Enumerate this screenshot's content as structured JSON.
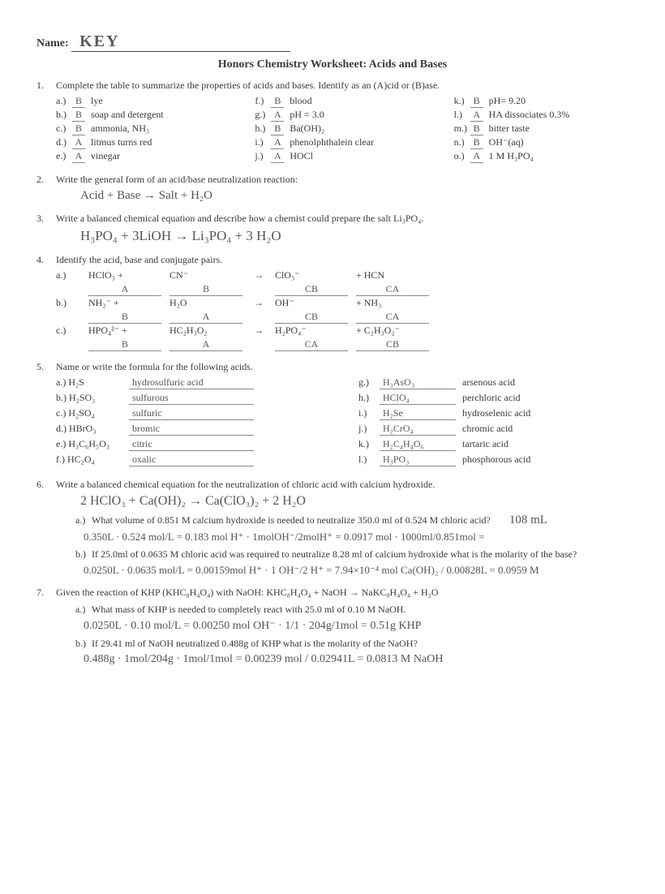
{
  "header": {
    "name_label": "Name:",
    "name_value": "KEY",
    "title": "Honors Chemistry Worksheet: Acids and Bases"
  },
  "q1": {
    "prompt": "Complete the table to summarize the properties of acids and bases. Identify as an (A)cid or (B)ase.",
    "col1": [
      {
        "l": "a.)",
        "a": "B",
        "t": "lye"
      },
      {
        "l": "b.)",
        "a": "B",
        "t": "soap and detergent"
      },
      {
        "l": "c.)",
        "a": "B",
        "t": "ammonia, NH₃"
      },
      {
        "l": "d.)",
        "a": "A",
        "t": "litmus turns red"
      },
      {
        "l": "e.)",
        "a": "A",
        "t": "vinegar"
      }
    ],
    "col2": [
      {
        "l": "f.)",
        "a": "B",
        "t": "blood"
      },
      {
        "l": "g.)",
        "a": "A",
        "t": "pH = 3.0"
      },
      {
        "l": "h.)",
        "a": "B",
        "t": "Ba(OH)₂"
      },
      {
        "l": "i.)",
        "a": "A",
        "t": "phenolphthalein clear"
      },
      {
        "l": "j.)",
        "a": "A",
        "t": "HOCl"
      }
    ],
    "col3": [
      {
        "l": "k.)",
        "a": "B",
        "t": "pH= 9.20"
      },
      {
        "l": "l.)",
        "a": "A",
        "t": "HA dissociates 0.3%"
      },
      {
        "l": "m.)",
        "a": "B",
        "t": "bitter taste"
      },
      {
        "l": "n.)",
        "a": "B",
        "t": "OH⁻(aq)"
      },
      {
        "l": "o.)",
        "a": "A",
        "t": "1 M H₃PO₄"
      }
    ]
  },
  "q2": {
    "prompt": "Write the general form of an acid/base neutralization reaction:",
    "hand": "Acid + Base  →  Salt + H₂O"
  },
  "q3": {
    "prompt": "Write a balanced chemical equation and describe how a chemist could prepare the salt Li₃PO₄.",
    "hand": "H₃PO₄ + 3LiOH  →  Li₃PO₄ + 3 H₂O"
  },
  "q4": {
    "prompt": "Identify the acid, base and conjugate pairs.",
    "rows": [
      {
        "l": "a.)",
        "r1": "HClO₃",
        "a1": "A",
        "r2": "CN⁻",
        "a2": "B",
        "r3": "ClO₃⁻",
        "a3": "CB",
        "r4": "+ HCN",
        "a4": "CA"
      },
      {
        "l": "b.)",
        "r1": "NH₂⁻",
        "a1": "B",
        "r2": "H₂O",
        "a2": "A",
        "r3": "OH⁻",
        "a3": "CB",
        "r4": "+ NH₃",
        "a4": "CA"
      },
      {
        "l": "c.)",
        "r1": "HPO₄²⁻",
        "a1": "B",
        "r2": "HC₂H₃O₂",
        "a2": "A",
        "r3": "H₂PO₄⁻",
        "a3": "CA",
        "r4": "+ C₂H₃O₂⁻",
        "a4": "CB"
      }
    ]
  },
  "q5": {
    "prompt": "Name or write the formula for the following acids.",
    "left": [
      {
        "l": "a.)",
        "f": "H₂S",
        "a": "hydrosulfuric acid"
      },
      {
        "l": "b.)",
        "f": "H₂SO₃",
        "a": "sulfurous"
      },
      {
        "l": "c.)",
        "f": "H₂SO₄",
        "a": "sulfuric"
      },
      {
        "l": "d.)",
        "f": "HBrO₃",
        "a": "bromic"
      },
      {
        "l": "e.)",
        "f": "H₃C₆H₅O₃",
        "a": "citric"
      },
      {
        "l": "f.)",
        "f": "HC₂O₄",
        "a": "oxalic"
      }
    ],
    "right": [
      {
        "l": "g.)",
        "a": "H₃AsO₃",
        "f": "arsenous acid"
      },
      {
        "l": "h.)",
        "a": "HClO₄",
        "f": "perchloric acid"
      },
      {
        "l": "i.)",
        "a": "H₂Se",
        "f": "hydroselenic acid"
      },
      {
        "l": "j.)",
        "a": "H₂CrO₄",
        "f": "chromic acid"
      },
      {
        "l": "k.)",
        "a": "H₂C₄H₄O₆",
        "f": "tartaric acid"
      },
      {
        "l": "l.)",
        "a": "H₃PO₃",
        "f": "phosphorous acid"
      }
    ]
  },
  "q6": {
    "prompt": "Write a balanced chemical equation for the neutralization of chloric acid with calcium hydroxide.",
    "hand": "2 HClO₃ + Ca(OH)₂  →  Ca(ClO₃)₂ + 2 H₂O",
    "a_prompt": "What volume of 0.851 M calcium hydroxide is needed to neutralize 350.0 ml of 0.524 M chloric acid?",
    "a_ans": "108 mL",
    "a_work": "0.350L · 0.524 mol/L = 0.183 mol H⁺ · 1molOH⁻/2molH⁺ = 0.0917 mol · 1000ml/0.851mol =",
    "b_prompt": "If 25.0ml of 0.0635 M chloric acid was required to neutralize 8.28 ml of calcium hydroxide what is the molarity of the base?",
    "b_work": "0.0250L · 0.0635 mol/L = 0.00159mol H⁺ · 1 OH⁻/2 H⁺ = 7.94×10⁻⁴ mol Ca(OH)₂ / 0.00828L = 0.0959 M"
  },
  "q7": {
    "prompt": "Given the reaction of KHP (KHC₈H₄O₄) with NaOH:      KHC₈H₄O₄ + NaOH   →   NaKC₈H₄O₄ + H₂O",
    "a_prompt": "What mass of KHP is needed to completely react with 25.0 ml of 0.10 M NaOH.",
    "a_work": "0.0250L · 0.10 mol/L = 0.00250 mol OH⁻ · 1/1 · 204g/1mol = 0.51g KHP",
    "b_prompt": "If 29.41 ml of NaOH neutralized 0.488g of KHP what is the molarity of the NaOH?",
    "b_work": "0.488g · 1mol/204g · 1mol/1mol = 0.00239 mol / 0.02941L = 0.0813 M NaOH"
  }
}
